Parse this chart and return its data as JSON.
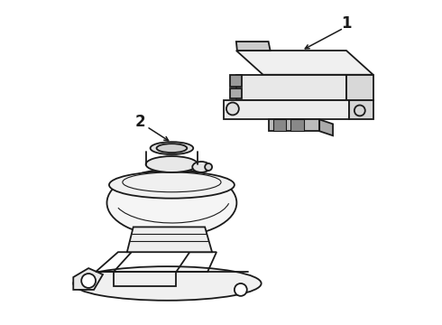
{
  "background_color": "#ffffff",
  "line_color": "#1a1a1a",
  "line_width": 1.3,
  "label1": "1",
  "label2": "2",
  "font_size_label": 12,
  "fig_width": 4.9,
  "fig_height": 3.6,
  "dpi": 100
}
